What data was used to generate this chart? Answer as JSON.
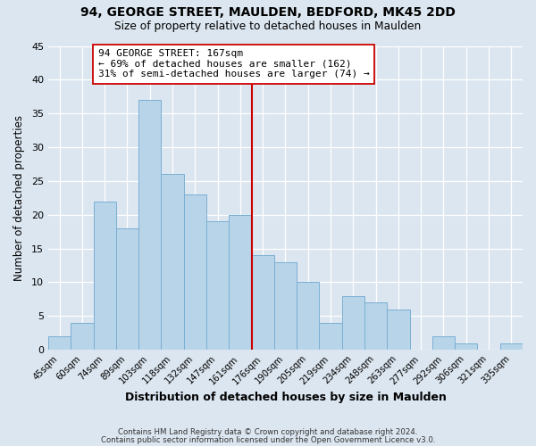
{
  "title": "94, GEORGE STREET, MAULDEN, BEDFORD, MK45 2DD",
  "subtitle": "Size of property relative to detached houses in Maulden",
  "xlabel": "Distribution of detached houses by size in Maulden",
  "ylabel": "Number of detached properties",
  "footer_lines": [
    "Contains HM Land Registry data © Crown copyright and database right 2024.",
    "Contains public sector information licensed under the Open Government Licence v3.0."
  ],
  "bar_labels": [
    "45sqm",
    "60sqm",
    "74sqm",
    "89sqm",
    "103sqm",
    "118sqm",
    "132sqm",
    "147sqm",
    "161sqm",
    "176sqm",
    "190sqm",
    "205sqm",
    "219sqm",
    "234sqm",
    "248sqm",
    "263sqm",
    "277sqm",
    "292sqm",
    "306sqm",
    "321sqm",
    "335sqm"
  ],
  "bar_values": [
    2,
    4,
    22,
    18,
    37,
    26,
    23,
    19,
    20,
    14,
    13,
    10,
    4,
    8,
    7,
    6,
    0,
    2,
    1,
    0,
    1
  ],
  "bar_color": "#b8d4e8",
  "bar_edge_color": "#7aafd4",
  "vline_x_index": 8,
  "vline_color": "#cc0000",
  "annotation_line1": "94 GEORGE STREET: 167sqm",
  "annotation_line2": "← 69% of detached houses are smaller (162)",
  "annotation_line3": "31% of semi-detached houses are larger (74) →",
  "annotation_box_color": "#ffffff",
  "annotation_box_edge": "#cc0000",
  "ylim": [
    0,
    45
  ],
  "yticks": [
    0,
    5,
    10,
    15,
    20,
    25,
    30,
    35,
    40,
    45
  ],
  "bg_color": "#dce6f0",
  "plot_bg_color": "#dce6f0"
}
